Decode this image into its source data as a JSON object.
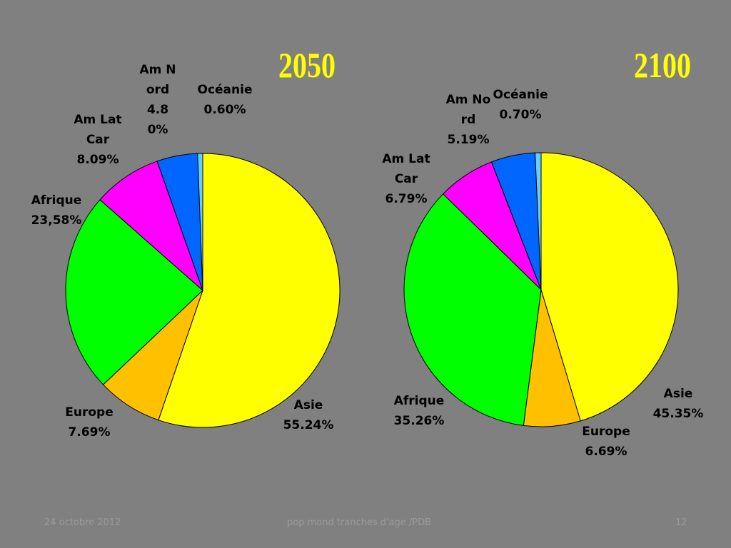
{
  "chart_data": [
    {
      "type": "pie",
      "title": "2050",
      "categories": [
        "Asie",
        "Europe",
        "Afrique",
        "Am Lat Car",
        "Am Nord",
        "Océanie"
      ],
      "values": [
        55.24,
        7.69,
        23.58,
        8.09,
        4.8,
        0.6
      ],
      "value_labels": [
        "55.24%",
        "7.69%",
        "23,58%",
        "8.09%",
        "4.80%",
        "0.60%"
      ],
      "colors": [
        "#ffff00",
        "#ffc000",
        "#00ff00",
        "#ff00ff",
        "#0066ff",
        "#66ccff"
      ]
    },
    {
      "type": "pie",
      "title": "2100",
      "categories": [
        "Asie",
        "Europe",
        "Afrique",
        "Am Lat Car",
        "Am Nord",
        "Océanie"
      ],
      "values": [
        45.35,
        6.69,
        35.26,
        6.79,
        5.19,
        0.7
      ],
      "value_labels": [
        "45.35%",
        "6.69%",
        "35.26%",
        "6.79%",
        "5.19%",
        "0.70%"
      ],
      "colors": [
        "#ffff00",
        "#ffc000",
        "#00ff00",
        "#ff00ff",
        "#0066ff",
        "#66ccff"
      ]
    }
  ],
  "footer": {
    "date": "24 octobre 2012",
    "title": "pop mond  tranches d'age /PDB",
    "page": "12"
  }
}
